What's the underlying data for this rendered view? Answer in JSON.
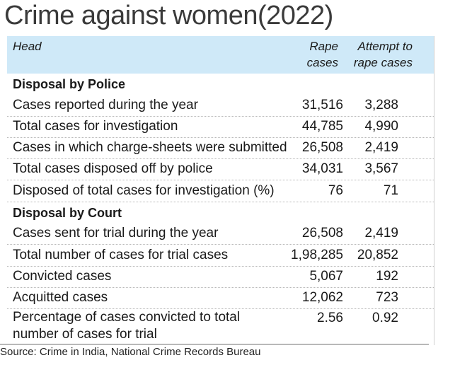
{
  "title": "Crime against women(2022)",
  "header": {
    "head": "Head",
    "col1_line1": "Rape",
    "col1_line2": "cases",
    "col2_line1": "Attempt to",
    "col2_line2": "rape cases"
  },
  "sections": {
    "police": "Disposal by Police",
    "court": "Disposal by Court"
  },
  "rows": [
    {
      "label": "Cases reported during the year",
      "rape": "31,516",
      "attempt": "3,288"
    },
    {
      "label": "Total cases for investigation",
      "rape": "44,785",
      "attempt": "4,990"
    },
    {
      "label": "Cases in which charge-sheets were submitted",
      "rape": "26,508",
      "attempt": "2,419"
    },
    {
      "label": "Total cases disposed off by police",
      "rape": "34,031",
      "attempt": "3,567"
    },
    {
      "label": "Disposed of total cases for investigation (%)",
      "rape": "76",
      "attempt": "71"
    },
    {
      "label": "Cases sent for trial during the year",
      "rape": "26,508",
      "attempt": "2,419"
    },
    {
      "label": "Total number of cases for trial cases",
      "rape": "1,98,285",
      "attempt": "20,852"
    },
    {
      "label": "Convicted cases",
      "rape": "5,067",
      "attempt": "192"
    },
    {
      "label": "Acquitted cases",
      "rape": "12,062",
      "attempt": "723"
    },
    {
      "label": "Percentage of cases convicted to total number of cases for trial",
      "rape": "2.56",
      "attempt": "0.92"
    }
  ],
  "source": "Source: Crime in India, National Crime Records Bureau"
}
